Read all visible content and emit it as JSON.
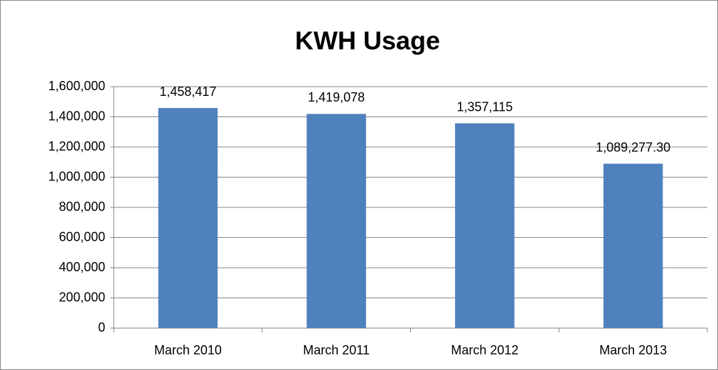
{
  "chart_data": {
    "type": "bar",
    "title": "KWH Usage",
    "categories": [
      "March 2010",
      "March 2011",
      "March 2012",
      "March 2013"
    ],
    "values": [
      1458417,
      1419078,
      1357115,
      1089277.3
    ],
    "value_labels": [
      "1,458,417",
      "1,419,078",
      "1,357,115",
      "1,089,277.30"
    ],
    "color": "#4f81bd",
    "ylim": [
      0,
      1600000
    ],
    "yticks": [
      0,
      {
        "value": 200000,
        "label": "200,000"
      },
      {
        "value": 400000,
        "label": "400,000"
      },
      {
        "value": 600000,
        "label": "600,000"
      },
      {
        "value": 800000,
        "label": "800,000"
      },
      {
        "value": 1000000,
        "label": "1,000,000"
      },
      {
        "value": 1200000,
        "label": "1,200,000"
      },
      {
        "value": 1400000,
        "label": "1,400,000"
      },
      {
        "value": 1600000,
        "label": "1,600,000"
      }
    ],
    "grid": true
  }
}
